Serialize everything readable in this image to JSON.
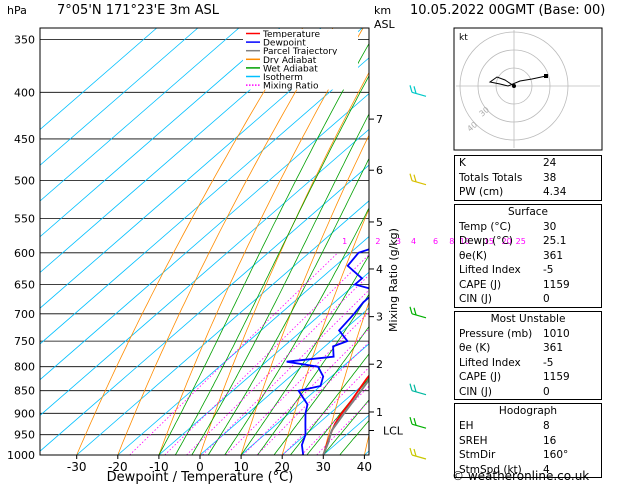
{
  "header": {
    "hpa_label": "hPa",
    "location": "7°05'N  171°23'E  3m  ASL",
    "km_label": "km",
    "asl_label": "ASL",
    "datetime": "10.05.2022  00GMT  (Base: 00)"
  },
  "legend": [
    {
      "label": "Temperature",
      "color": "#ff0000"
    },
    {
      "label": "Dewpoint",
      "color": "#0000ff"
    },
    {
      "label": "Parcel Trajectory",
      "color": "#808080"
    },
    {
      "label": "Dry Adiabat",
      "color": "#ff8c00"
    },
    {
      "label": "Wet Adiabat",
      "color": "#00a000"
    },
    {
      "label": "Isotherm",
      "color": "#00c0ff"
    },
    {
      "label": "Mixing Ratio",
      "color": "#ff00ff"
    }
  ],
  "chart_data": {
    "type": "line",
    "xlabel": "Dewpoint / Temperature (°C)",
    "ylabel": "Mixing Ratio (g/kg)",
    "x_ticks": [
      -30,
      -20,
      -10,
      0,
      10,
      20,
      30,
      40
    ],
    "xlim": [
      -40,
      40
    ],
    "pressure_levels": [
      350,
      400,
      450,
      500,
      550,
      600,
      650,
      700,
      750,
      800,
      850,
      900,
      950,
      1000
    ],
    "ylim_hpa": [
      1000,
      300
    ],
    "km_ticks": [
      {
        "km": "1",
        "p": 897
      },
      {
        "km": "2",
        "p": 795
      },
      {
        "km": "3",
        "p": 705
      },
      {
        "km": "4",
        "p": 625
      },
      {
        "km": "5",
        "p": 555
      },
      {
        "km": "6",
        "p": 487
      },
      {
        "km": "7",
        "p": 428
      }
    ],
    "lcl": {
      "label": "LCL",
      "p": 940
    },
    "mixing_ratio_labels": [
      "1",
      "2",
      "3",
      "4",
      "6",
      "8",
      "10",
      "15",
      "20",
      "25"
    ],
    "mixing_ratio_values": [
      1,
      2,
      3,
      4,
      6,
      8,
      10,
      15,
      20,
      25
    ],
    "mixing_ratio_label_p": 590,
    "series": [
      {
        "name": "Temperature",
        "color": "#ff0000",
        "points": [
          [
            1000,
            30
          ],
          [
            975,
            28
          ],
          [
            950,
            26
          ],
          [
            925,
            24.2
          ],
          [
            900,
            22.8
          ],
          [
            875,
            21.8
          ],
          [
            850,
            20.5
          ],
          [
            825,
            19.2
          ],
          [
            800,
            18.2
          ],
          [
            775,
            16.5
          ],
          [
            750,
            15.2
          ],
          [
            725,
            13.8
          ],
          [
            700,
            12.5
          ],
          [
            675,
            10.8
          ],
          [
            650,
            9.2
          ],
          [
            625,
            7.5
          ],
          [
            600,
            5.8
          ],
          [
            575,
            3.8
          ],
          [
            550,
            1.5
          ],
          [
            525,
            -0.8
          ],
          [
            500,
            -3
          ],
          [
            475,
            -5.2
          ],
          [
            450,
            -7.5
          ],
          [
            425,
            -10.5
          ],
          [
            400,
            -13.5
          ],
          [
            375,
            -16.5
          ],
          [
            350,
            -19.5
          ],
          [
            340,
            -20.5
          ]
        ]
      },
      {
        "name": "Dewpoint",
        "color": "#0000ff",
        "points": [
          [
            1000,
            25.1
          ],
          [
            975,
            22
          ],
          [
            950,
            20
          ],
          [
            925,
            17
          ],
          [
            900,
            14
          ],
          [
            880,
            12
          ],
          [
            860,
            8
          ],
          [
            850,
            6
          ],
          [
            840,
            10
          ],
          [
            820,
            8
          ],
          [
            800,
            4
          ],
          [
            790,
            -5
          ],
          [
            780,
            5
          ],
          [
            760,
            2
          ],
          [
            750,
            4
          ],
          [
            730,
            -1
          ],
          [
            700,
            -2
          ],
          [
            680,
            -3
          ],
          [
            660,
            -3
          ],
          [
            650,
            -10
          ],
          [
            640,
            -10
          ],
          [
            620,
            -17
          ],
          [
            600,
            -18
          ],
          [
            590,
            -15
          ],
          [
            580,
            -16
          ],
          [
            560,
            -10
          ],
          [
            555,
            -6
          ],
          [
            548,
            -18
          ],
          [
            530,
            -12
          ],
          [
            510,
            -12
          ],
          [
            500,
            -14
          ],
          [
            480,
            -14
          ],
          [
            460,
            -12
          ],
          [
            455,
            -14
          ],
          [
            450,
            -30
          ],
          [
            440,
            -27
          ],
          [
            420,
            -20
          ],
          [
            395,
            -37
          ],
          [
            380,
            -33
          ],
          [
            350,
            -25
          ],
          [
            300,
            -15
          ]
        ]
      },
      {
        "name": "Parcel Trajectory",
        "color": "#808080",
        "points": [
          [
            1000,
            30
          ],
          [
            970,
            27.8
          ],
          [
            940,
            25.2
          ],
          [
            900,
            23.4
          ],
          [
            850,
            21.2
          ],
          [
            800,
            18.8
          ],
          [
            750,
            16.2
          ],
          [
            700,
            13.4
          ],
          [
            650,
            10.4
          ],
          [
            600,
            7
          ],
          [
            550,
            3.2
          ],
          [
            500,
            -1.2
          ],
          [
            450,
            -6.5
          ],
          [
            400,
            -12.5
          ],
          [
            350,
            -19.8
          ]
        ]
      }
    ]
  },
  "hodograph": {
    "label": "kt",
    "ring_labels": [
      "20",
      "30"
    ],
    "ring_label_text": "40"
  },
  "indices": {
    "top": [
      {
        "key": "K",
        "value": "24"
      },
      {
        "key": "Totals Totals",
        "value": "38"
      },
      {
        "key": "PW (cm)",
        "value": "4.34"
      }
    ],
    "surface": {
      "title": "Surface",
      "rows": [
        {
          "key": "Temp (°C)",
          "value": "30"
        },
        {
          "key": "Dewp (°C)",
          "value": "25.1"
        },
        {
          "key": "θe(K)",
          "value": "361"
        },
        {
          "key": "Lifted Index",
          "value": "-5"
        },
        {
          "key": "CAPE (J)",
          "value": "1159"
        },
        {
          "key": "CIN (J)",
          "value": "0"
        }
      ]
    },
    "most_unstable": {
      "title": "Most Unstable",
      "rows": [
        {
          "key": "Pressure (mb)",
          "value": "1010"
        },
        {
          "key": "θe (K)",
          "value": "361"
        },
        {
          "key": "Lifted Index",
          "value": "-5"
        },
        {
          "key": "CAPE (J)",
          "value": "1159"
        },
        {
          "key": "CIN (J)",
          "value": "0"
        }
      ]
    },
    "hodograph": {
      "title": "Hodograph",
      "rows": [
        {
          "key": "EH",
          "value": "8"
        },
        {
          "key": "SREH",
          "value": "16"
        },
        {
          "key": "StmDir",
          "value": "160°"
        },
        {
          "key": "StmSpd (kt)",
          "value": "4"
        }
      ]
    }
  },
  "footer": {
    "copyright": "© weatheronline.co.uk"
  }
}
